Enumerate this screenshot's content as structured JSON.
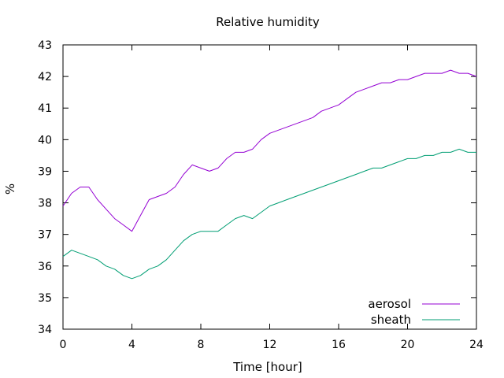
{
  "chart_data": {
    "type": "line",
    "title": "Relative humidity",
    "xlabel": "Time [hour]",
    "ylabel": "%",
    "xlim": [
      0,
      24
    ],
    "ylim": [
      34,
      43
    ],
    "xticks": [
      0,
      4,
      8,
      12,
      16,
      20,
      24
    ],
    "yticks": [
      34,
      35,
      36,
      37,
      38,
      39,
      40,
      41,
      42,
      43
    ],
    "grid": false,
    "legend_position": "bottom-right",
    "series": [
      {
        "name": "aerosol",
        "color": "#9400d3",
        "x": [
          0,
          0.5,
          1,
          1.5,
          2,
          2.5,
          3,
          3.5,
          4,
          4.5,
          5,
          5.5,
          6,
          6.5,
          7,
          7.5,
          8,
          8.5,
          9,
          9.5,
          10,
          10.5,
          11,
          11.5,
          12,
          12.5,
          13,
          13.5,
          14,
          14.5,
          15,
          15.5,
          16,
          16.5,
          17,
          17.5,
          18,
          18.5,
          19,
          19.5,
          20,
          20.5,
          21,
          21.5,
          22,
          22.5,
          23,
          23.5,
          24
        ],
        "values": [
          37.9,
          38.3,
          38.5,
          38.5,
          38.1,
          37.8,
          37.5,
          37.3,
          37.1,
          37.6,
          38.1,
          38.2,
          38.3,
          38.5,
          38.9,
          39.2,
          39.1,
          39.0,
          39.1,
          39.4,
          39.6,
          39.6,
          39.7,
          40.0,
          40.2,
          40.3,
          40.4,
          40.5,
          40.6,
          40.7,
          40.9,
          41.0,
          41.1,
          41.3,
          41.5,
          41.6,
          41.7,
          41.8,
          41.8,
          41.9,
          41.9,
          42.0,
          42.1,
          42.1,
          42.1,
          42.2,
          42.1,
          42.1,
          42.0
        ]
      },
      {
        "name": "sheath",
        "color": "#009e73",
        "x": [
          0,
          0.5,
          1,
          1.5,
          2,
          2.5,
          3,
          3.5,
          4,
          4.5,
          5,
          5.5,
          6,
          6.5,
          7,
          7.5,
          8,
          8.5,
          9,
          9.5,
          10,
          10.5,
          11,
          11.5,
          12,
          12.5,
          13,
          13.5,
          14,
          14.5,
          15,
          15.5,
          16,
          16.5,
          17,
          17.5,
          18,
          18.5,
          19,
          19.5,
          20,
          20.5,
          21,
          21.5,
          22,
          22.5,
          23,
          23.5,
          24
        ],
        "values": [
          36.3,
          36.5,
          36.4,
          36.3,
          36.2,
          36.0,
          35.9,
          35.7,
          35.6,
          35.7,
          35.9,
          36.0,
          36.2,
          36.5,
          36.8,
          37.0,
          37.1,
          37.1,
          37.1,
          37.3,
          37.5,
          37.6,
          37.5,
          37.7,
          37.9,
          38.0,
          38.1,
          38.2,
          38.3,
          38.4,
          38.5,
          38.6,
          38.7,
          38.8,
          38.9,
          39.0,
          39.1,
          39.1,
          39.2,
          39.3,
          39.4,
          39.4,
          39.5,
          39.5,
          39.6,
          39.6,
          39.7,
          39.6,
          39.6
        ]
      }
    ]
  }
}
